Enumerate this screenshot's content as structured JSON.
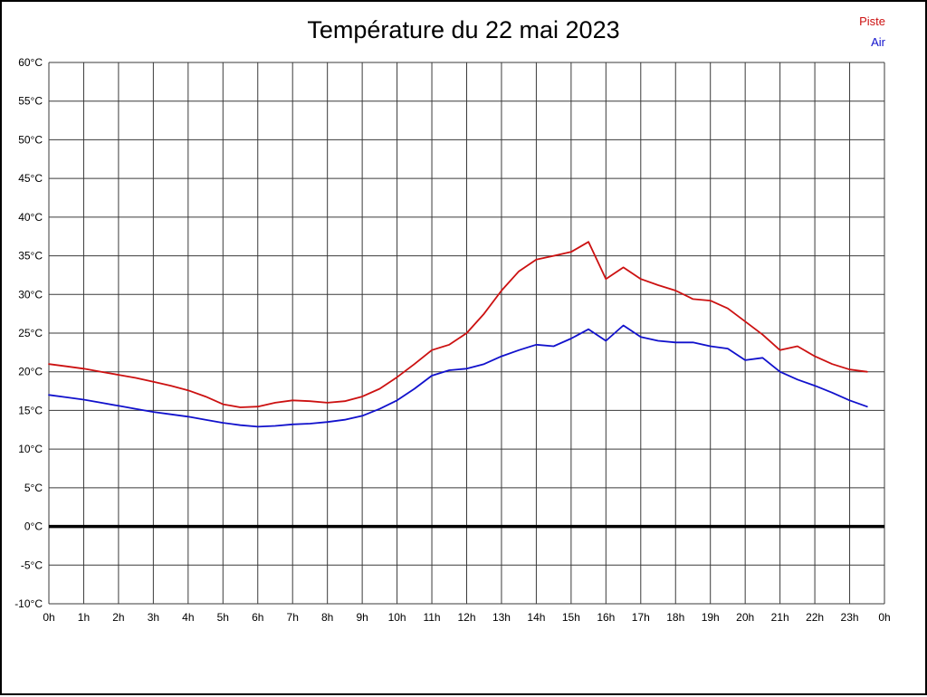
{
  "title": "Température du 22 mai 2023",
  "legend": {
    "items": [
      {
        "label": "Piste",
        "color": "#cc1111"
      },
      {
        "label": "Air",
        "color": "#1111cc"
      }
    ]
  },
  "chart_data": {
    "type": "line",
    "title": "Température du 22 mai 2023",
    "xlabel": "",
    "ylabel": "",
    "xlim": [
      0,
      24
    ],
    "ylim": [
      -10,
      60
    ],
    "grid": true,
    "legend_position": "top-right",
    "zero_line_value": 0,
    "x_tick_labels": [
      "0h",
      "1h",
      "2h",
      "3h",
      "4h",
      "5h",
      "6h",
      "7h",
      "8h",
      "9h",
      "10h",
      "11h",
      "12h",
      "13h",
      "14h",
      "15h",
      "16h",
      "17h",
      "18h",
      "19h",
      "20h",
      "21h",
      "22h",
      "23h",
      "0h"
    ],
    "y_tick_step": 5,
    "y_tick_labels": [
      "60°C",
      "55°C",
      "50°C",
      "45°C",
      "40°C",
      "35°C",
      "30°C",
      "25°C",
      "20°C",
      "15°C",
      "10°C",
      "5°C",
      "0°C",
      "-5°C",
      "-10°C"
    ],
    "x": [
      0,
      0.5,
      1,
      1.5,
      2,
      2.5,
      3,
      3.5,
      4,
      4.5,
      5,
      5.5,
      6,
      6.5,
      7,
      7.5,
      8,
      8.5,
      9,
      9.5,
      10,
      10.5,
      11,
      11.5,
      12,
      12.5,
      13,
      13.5,
      14,
      14.5,
      15,
      15.5,
      16,
      16.5,
      17,
      17.5,
      18,
      18.5,
      19,
      19.5,
      20,
      20.5,
      21,
      21.5,
      22,
      22.5,
      23,
      23.5
    ],
    "series": [
      {
        "name": "Piste",
        "color": "#cc1111",
        "values": [
          21.0,
          20.7,
          20.4,
          20.0,
          19.6,
          19.2,
          18.7,
          18.2,
          17.6,
          16.8,
          15.8,
          15.4,
          15.5,
          16.0,
          16.3,
          16.2,
          16.0,
          16.2,
          16.8,
          17.8,
          19.3,
          21.0,
          22.8,
          23.5,
          25.0,
          27.5,
          30.5,
          33.0,
          34.5,
          35.0,
          35.5,
          36.8,
          32.0,
          33.5,
          32.0,
          31.2,
          30.5,
          29.4,
          29.2,
          28.2,
          26.5,
          24.8,
          22.8,
          23.3,
          22.0,
          21.0,
          20.3,
          20.0
        ]
      },
      {
        "name": "Air",
        "color": "#1111cc",
        "values": [
          17.0,
          16.7,
          16.4,
          16.0,
          15.6,
          15.2,
          14.8,
          14.5,
          14.2,
          13.8,
          13.4,
          13.1,
          12.9,
          13.0,
          13.2,
          13.3,
          13.5,
          13.8,
          14.3,
          15.2,
          16.3,
          17.8,
          19.5,
          20.2,
          20.4,
          21.0,
          22.0,
          22.8,
          23.5,
          23.3,
          24.3,
          25.5,
          24.0,
          26.0,
          24.5,
          24.0,
          23.8,
          23.8,
          23.3,
          23.0,
          21.5,
          21.8,
          20.0,
          19.0,
          18.2,
          17.3,
          16.3,
          15.5
        ]
      }
    ]
  }
}
